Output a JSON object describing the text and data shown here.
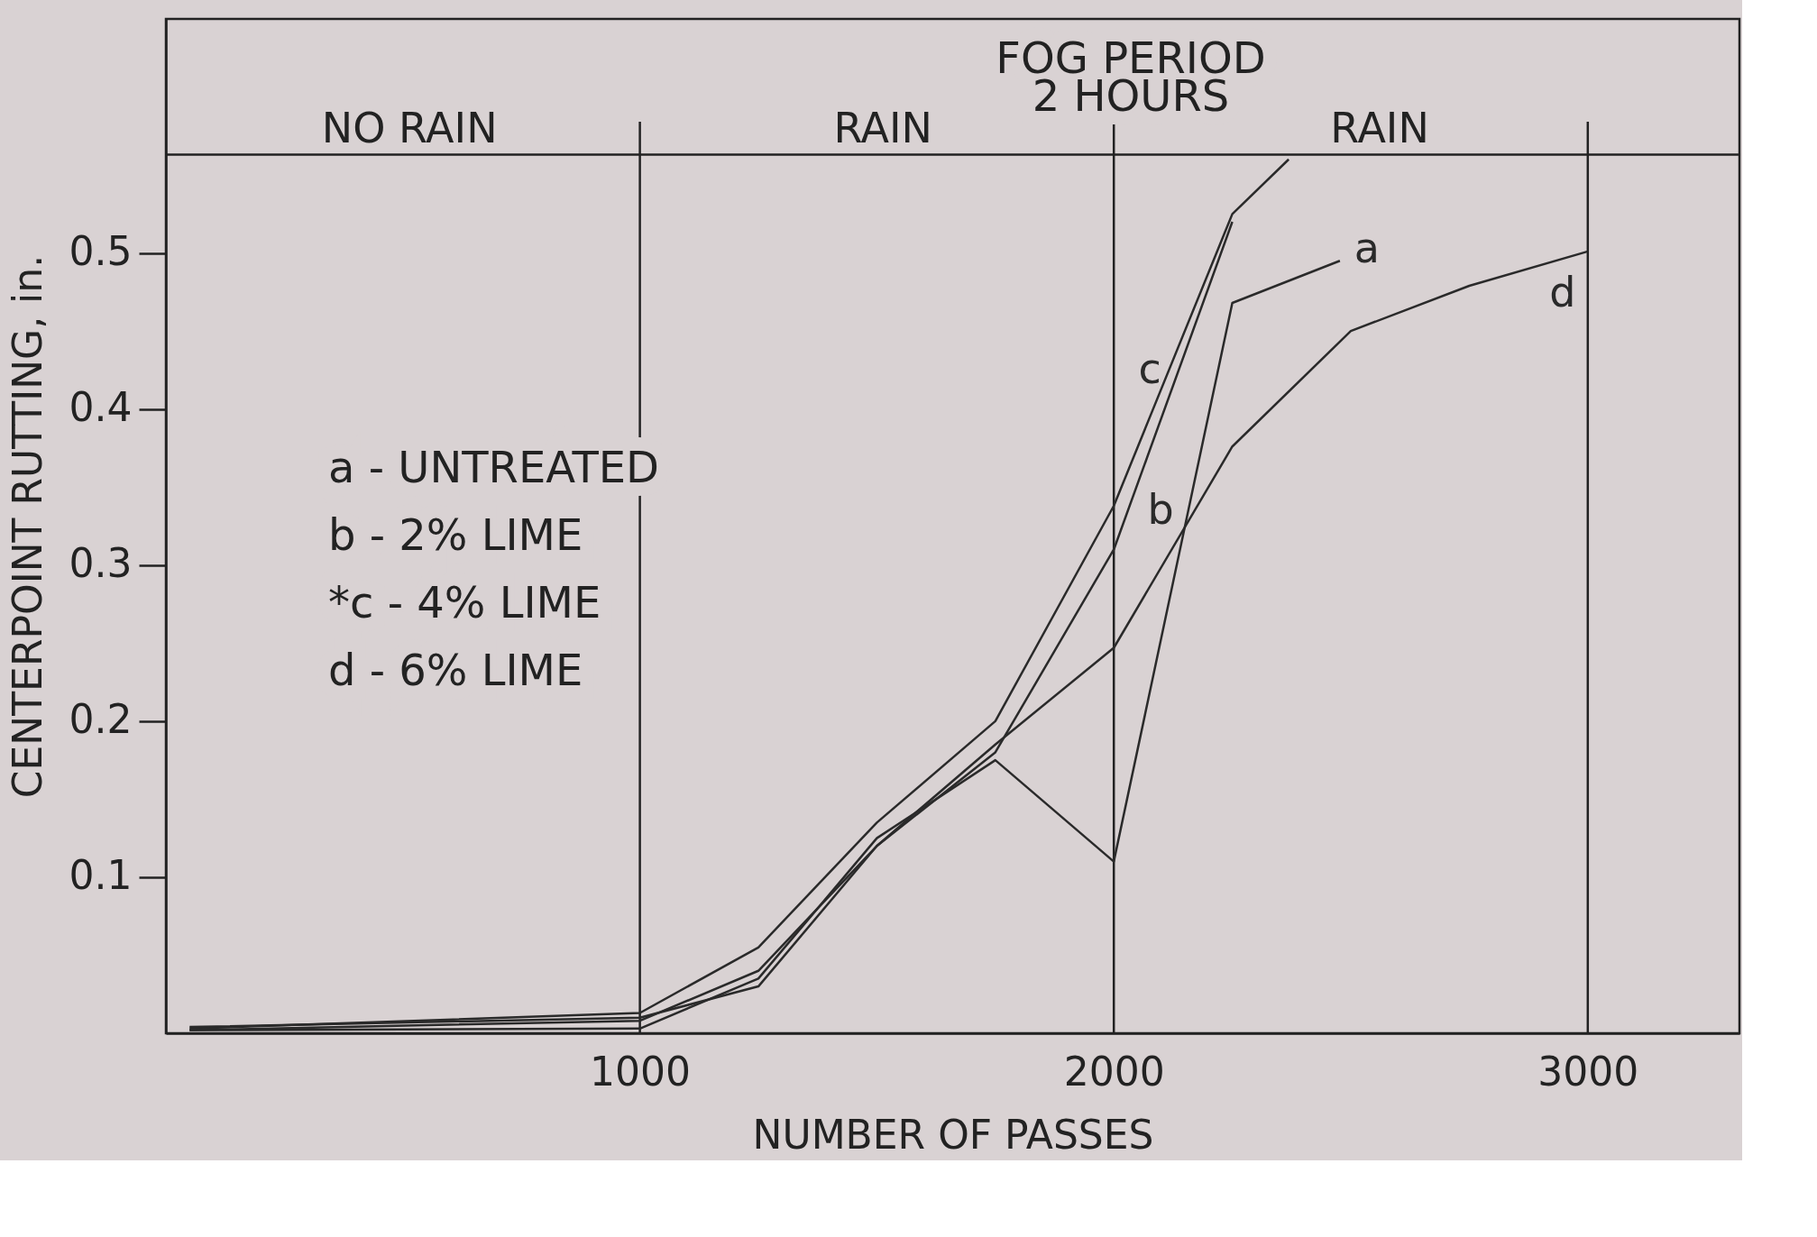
{
  "chart_data": {
    "type": "line",
    "xlabel": "NUMBER OF PASSES",
    "ylabel": "CENTERPOINT RUTTING, in.",
    "xlim": [
      0,
      3320
    ],
    "ylim": [
      0,
      0.65
    ],
    "xticks": [
      1000,
      2000,
      3000
    ],
    "yticks": [
      0.1,
      0.2,
      0.3,
      0.4,
      0.5
    ],
    "grid": false,
    "marker": "none",
    "line_style": "solid",
    "series": [
      {
        "name": "a",
        "color": "#2a2a2a",
        "x": [
          50,
          1000,
          1250,
          1500,
          1750,
          2000,
          2250,
          2477
        ],
        "values": [
          0.002,
          0.003,
          0.035,
          0.125,
          0.175,
          0.11,
          0.468,
          0.495
        ]
      },
      {
        "name": "b",
        "color": "#2a2a2a",
        "x": [
          50,
          1000,
          1250,
          1500,
          1750,
          2000,
          2250
        ],
        "values": [
          0.002,
          0.008,
          0.04,
          0.12,
          0.18,
          0.31,
          0.52
        ]
      },
      {
        "name": "c",
        "color": "#2a2a2a",
        "x": [
          50,
          1000,
          1250,
          1500,
          1750,
          2000,
          2250,
          2369
        ],
        "values": [
          0.003,
          0.013,
          0.055,
          0.135,
          0.2,
          0.338,
          0.525,
          0.56
        ]
      },
      {
        "name": "d",
        "color": "#2a2a2a",
        "x": [
          50,
          1000,
          1250,
          1500,
          1750,
          2000,
          2250,
          2500,
          2750,
          3000
        ],
        "values": [
          0.004,
          0.01,
          0.03,
          0.12,
          0.185,
          0.247,
          0.376,
          0.45,
          0.479,
          0.501
        ]
      }
    ],
    "ref_lines": [
      {
        "axis": "x",
        "value": 1000
      },
      {
        "axis": "x",
        "value": 2000
      },
      {
        "axis": "x",
        "value": 3000
      },
      {
        "axis": "y",
        "value": 0.563
      }
    ],
    "annotations": [
      {
        "text": "NO RAIN",
        "x": 514,
        "y": 0.563
      },
      {
        "text": "RAIN",
        "x": 1513,
        "y": 0.563
      },
      {
        "text": "RAIN",
        "x": 2561,
        "y": 0.563
      },
      "FOG PERIOD",
      "2 HOURS",
      "a - UNTREATED",
      "b - 2% LIME",
      "*c - 4% LIME",
      "d - 6% LIME"
    ]
  }
}
